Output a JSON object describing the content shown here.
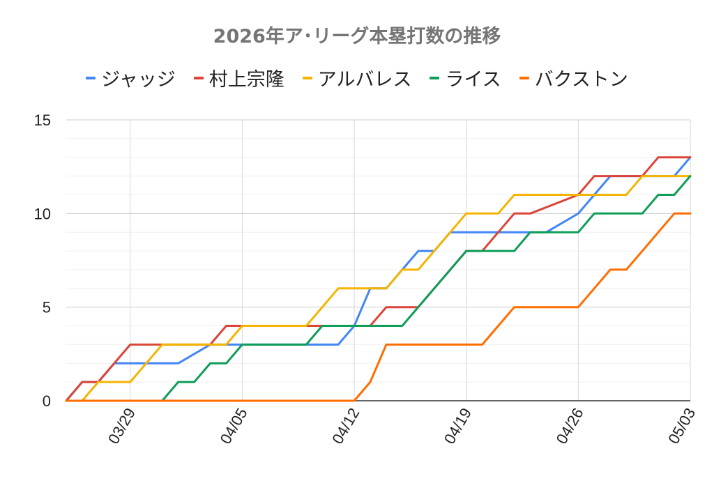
{
  "chart_data": {
    "type": "line",
    "title": "2026年ア･リーグ本塁打数の推移",
    "xlabel": "",
    "ylabel": "",
    "ylim": [
      0,
      15
    ],
    "yticks": [
      "0",
      "5",
      "10",
      "15"
    ],
    "x_range": [
      "2026-03-25",
      "2026-05-03"
    ],
    "xticks": [
      {
        "date": "2026-03-29",
        "label": "03/29"
      },
      {
        "date": "2026-04-05",
        "label": "04/05"
      },
      {
        "date": "2026-04-12",
        "label": "04/12"
      },
      {
        "date": "2026-04-19",
        "label": "04/19"
      },
      {
        "date": "2026-04-26",
        "label": "04/26"
      },
      {
        "date": "2026-05-03",
        "label": "05/03"
      }
    ],
    "grid": true,
    "legend_position": "top",
    "series": [
      {
        "name": "ジャッジ",
        "color": "#4285F4",
        "x": [
          "2026-03-25",
          "2026-03-26",
          "2026-03-27",
          "2026-03-28",
          "2026-03-31",
          "2026-04-01",
          "2026-04-03",
          "2026-04-05",
          "2026-04-06",
          "2026-04-10",
          "2026-04-11",
          "2026-04-12",
          "2026-04-13",
          "2026-04-14",
          "2026-04-15",
          "2026-04-16",
          "2026-04-17",
          "2026-04-18",
          "2026-04-19",
          "2026-04-21",
          "2026-04-24",
          "2026-04-26",
          "2026-04-27",
          "2026-04-28",
          "2026-04-29",
          "2026-04-30",
          "2026-05-01",
          "2026-05-02",
          "2026-05-03"
        ],
        "values": [
          0,
          1,
          1,
          2,
          2,
          2,
          3,
          3,
          3,
          3,
          3,
          4,
          6,
          6,
          7,
          8,
          8,
          9,
          9,
          9,
          9,
          10,
          11,
          12,
          12,
          12,
          12,
          12,
          13
        ]
      },
      {
        "name": "村上宗隆",
        "color": "#DB4437",
        "x": [
          "2026-03-25",
          "2026-03-26",
          "2026-03-27",
          "2026-03-29",
          "2026-03-31",
          "2026-04-01",
          "2026-04-03",
          "2026-04-04",
          "2026-04-05",
          "2026-04-06",
          "2026-04-10",
          "2026-04-11",
          "2026-04-12",
          "2026-04-13",
          "2026-04-14",
          "2026-04-15",
          "2026-04-16",
          "2026-04-17",
          "2026-04-18",
          "2026-04-19",
          "2026-04-20",
          "2026-04-21",
          "2026-04-22",
          "2026-04-23",
          "2026-04-26",
          "2026-04-27",
          "2026-04-28",
          "2026-04-29",
          "2026-04-30",
          "2026-05-01",
          "2026-05-02",
          "2026-05-03"
        ],
        "values": [
          0,
          1,
          1,
          3,
          3,
          3,
          3,
          4,
          4,
          4,
          4,
          4,
          4,
          4,
          5,
          5,
          5,
          6,
          7,
          8,
          8,
          9,
          10,
          10,
          11,
          12,
          12,
          12,
          12,
          13,
          13,
          13
        ]
      },
      {
        "name": "アルバレス",
        "color": "#F4B400",
        "x": [
          "2026-03-25",
          "2026-03-26",
          "2026-03-27",
          "2026-03-29",
          "2026-03-30",
          "2026-03-31",
          "2026-04-03",
          "2026-04-04",
          "2026-04-05",
          "2026-04-06",
          "2026-04-09",
          "2026-04-10",
          "2026-04-11",
          "2026-04-12",
          "2026-04-13",
          "2026-04-14",
          "2026-04-15",
          "2026-04-16",
          "2026-04-17",
          "2026-04-18",
          "2026-04-19",
          "2026-04-21",
          "2026-04-22",
          "2026-04-24",
          "2026-04-26",
          "2026-04-28",
          "2026-04-29",
          "2026-04-30",
          "2026-05-01",
          "2026-05-02",
          "2026-05-03"
        ],
        "values": [
          0,
          0,
          1,
          1,
          2,
          3,
          3,
          3,
          4,
          4,
          4,
          5,
          6,
          6,
          6,
          6,
          7,
          7,
          8,
          9,
          10,
          10,
          11,
          11,
          11,
          11,
          11,
          12,
          12,
          12,
          12
        ]
      },
      {
        "name": "ライス",
        "color": "#0F9D58",
        "x": [
          "2026-03-25",
          "2026-03-31",
          "2026-04-01",
          "2026-04-02",
          "2026-04-03",
          "2026-04-04",
          "2026-04-05",
          "2026-04-09",
          "2026-04-10",
          "2026-04-11",
          "2026-04-12",
          "2026-04-13",
          "2026-04-14",
          "2026-04-15",
          "2026-04-19",
          "2026-04-20",
          "2026-04-22",
          "2026-04-23",
          "2026-04-26",
          "2026-04-27",
          "2026-04-29",
          "2026-04-30",
          "2026-05-01",
          "2026-05-02",
          "2026-05-03"
        ],
        "values": [
          0,
          0,
          1,
          1,
          2,
          2,
          3,
          3,
          4,
          4,
          4,
          4,
          4,
          4,
          8,
          8,
          8,
          9,
          9,
          10,
          10,
          10,
          11,
          11,
          12
        ]
      },
      {
        "name": "バクストン",
        "color": "#FF6D00",
        "x": [
          "2026-03-25",
          "2026-04-12",
          "2026-04-13",
          "2026-04-14",
          "2026-04-19",
          "2026-04-20",
          "2026-04-21",
          "2026-04-22",
          "2026-04-26",
          "2026-04-27",
          "2026-04-28",
          "2026-04-29",
          "2026-04-30",
          "2026-05-01",
          "2026-05-02",
          "2026-05-03"
        ],
        "values": [
          0,
          0,
          1,
          3,
          3,
          3,
          4,
          5,
          5,
          6,
          7,
          7,
          8,
          9,
          10,
          10
        ]
      }
    ]
  }
}
